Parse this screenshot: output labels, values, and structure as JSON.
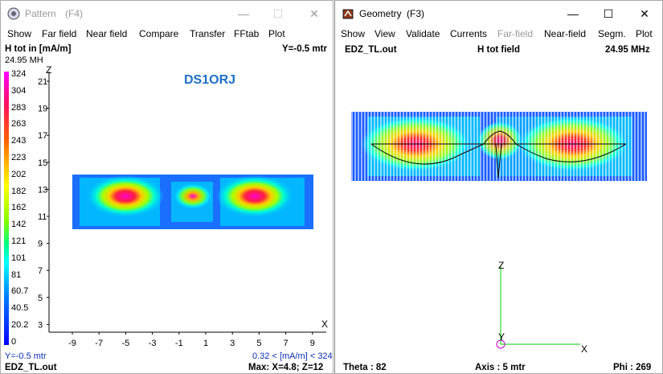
{
  "pattern": {
    "title": "Pattern",
    "shortcut": "(F4)",
    "menu": [
      "Show",
      "Far field",
      "Near field",
      "Compare",
      "Transfer",
      "FFtab",
      "Plot"
    ],
    "header_left": "H tot in [mA/m]",
    "header_right": "Y=-0.5 mtr",
    "freq": "24.95 MH",
    "logo": "DS1ORJ",
    "legend": [
      "324",
      "304",
      "283",
      "263",
      "243",
      "223",
      "202",
      "182",
      "162",
      "142",
      "121",
      "101",
      "81",
      "60.7",
      "40.5",
      "20.2",
      "0"
    ],
    "z_axis_label": "Z",
    "x_axis_label": "X",
    "z_ticks": [
      "21",
      "19",
      "17",
      "15",
      "13",
      "11",
      "9",
      "7",
      "5",
      "3"
    ],
    "x_ticks": [
      "-9",
      "-7",
      "-5",
      "-3",
      "-1",
      "1",
      "3",
      "5",
      "7",
      "9"
    ],
    "footer_left": "Y=-0.5 mtr",
    "footer_right": "0.32 < [mA/m] < 324",
    "status_left": "EDZ_TL.out",
    "status_right": "Max: X=4.8; Z=12"
  },
  "geometry": {
    "title": "Geometry",
    "shortcut": "(F3)",
    "menu": [
      "Show",
      "View",
      "Validate",
      "Currents",
      "Far-field",
      "Near-field",
      "Segm.",
      "Plot"
    ],
    "header_left": "EDZ_TL.out",
    "header_center": "H tot field",
    "header_right": "24.95 MHz",
    "axis_z": "Z",
    "axis_x": "X",
    "axis_y": "Y",
    "status_left": "Theta : 82",
    "status_center": "Axis : 5 mtr",
    "status_right": "Phi : 269"
  },
  "window_buttons": {
    "minimize": "—",
    "maximize": "☐",
    "close": "✕"
  },
  "colors": {
    "legend_gradient": [
      "#ff00ff",
      "#ff1060",
      "#ff6000",
      "#ffc000",
      "#ffff00",
      "#80ff00",
      "#00ff80",
      "#00ffff",
      "#0080ff",
      "#0000ff"
    ],
    "axis_green": "#00cc00",
    "text_blue": "#0a2fb5"
  }
}
